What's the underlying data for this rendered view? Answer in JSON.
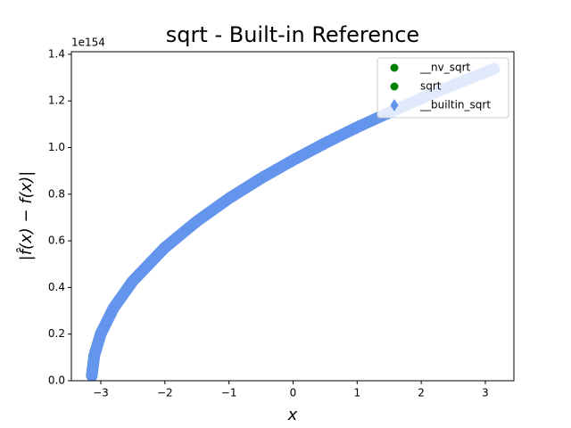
{
  "chart_data": {
    "type": "scatter",
    "title": "sqrt - Built-in Reference",
    "x_label": "x",
    "y_label": "|f̂(x) − f(x)|",
    "y_offset_label": "1e154",
    "x": [
      -3.14,
      -3.1,
      -3.0,
      -2.8,
      -2.5,
      -2.0,
      -1.5,
      -1.0,
      -0.5,
      0,
      0.5,
      1.0,
      1.5,
      2.0,
      2.5,
      3.0,
      3.14
    ],
    "series": [
      {
        "name": "__nv_sqrt",
        "color": "#008000",
        "marker": "circle",
        "values": [
          0.021,
          0.109,
          0.201,
          0.312,
          0.428,
          0.571,
          0.684,
          0.782,
          0.868,
          0.946,
          1.019,
          1.087,
          1.15,
          1.211,
          1.268,
          1.323,
          1.338
        ]
      },
      {
        "name": "sqrt",
        "color": "#008000",
        "marker": "circle",
        "values": [
          0.021,
          0.109,
          0.201,
          0.312,
          0.428,
          0.571,
          0.684,
          0.782,
          0.868,
          0.946,
          1.019,
          1.087,
          1.15,
          1.211,
          1.268,
          1.323,
          1.338
        ]
      },
      {
        "name": "__builtin_sqrt",
        "color": "#6495ed",
        "marker": "diamond",
        "values": [
          0.021,
          0.109,
          0.201,
          0.312,
          0.428,
          0.571,
          0.684,
          0.782,
          0.868,
          0.946,
          1.019,
          1.087,
          1.15,
          1.211,
          1.268,
          1.323,
          1.338
        ]
      }
    ],
    "xlim": [
      -3.459,
      3.446
    ],
    "xticks": [
      {
        "value": -3,
        "label": "−3"
      },
      {
        "value": -2,
        "label": "−2"
      },
      {
        "value": -1,
        "label": "−1"
      },
      0,
      1,
      2,
      3
    ],
    "ylim": [
      0,
      1.411
    ],
    "yticks": [
      {
        "value": 0,
        "label": "0.0"
      },
      {
        "value": 0.2,
        "label": "0.2"
      },
      {
        "value": 0.4,
        "label": "0.4"
      },
      {
        "value": 0.6,
        "label": "0.6"
      },
      {
        "value": 0.8,
        "label": "0.8"
      },
      {
        "value": 1.0,
        "label": "1.0"
      },
      {
        "value": 1.2,
        "label": "1.2"
      },
      {
        "value": 1.4,
        "label": "1.4"
      }
    ],
    "legend": "upper right",
    "grid": false
  }
}
